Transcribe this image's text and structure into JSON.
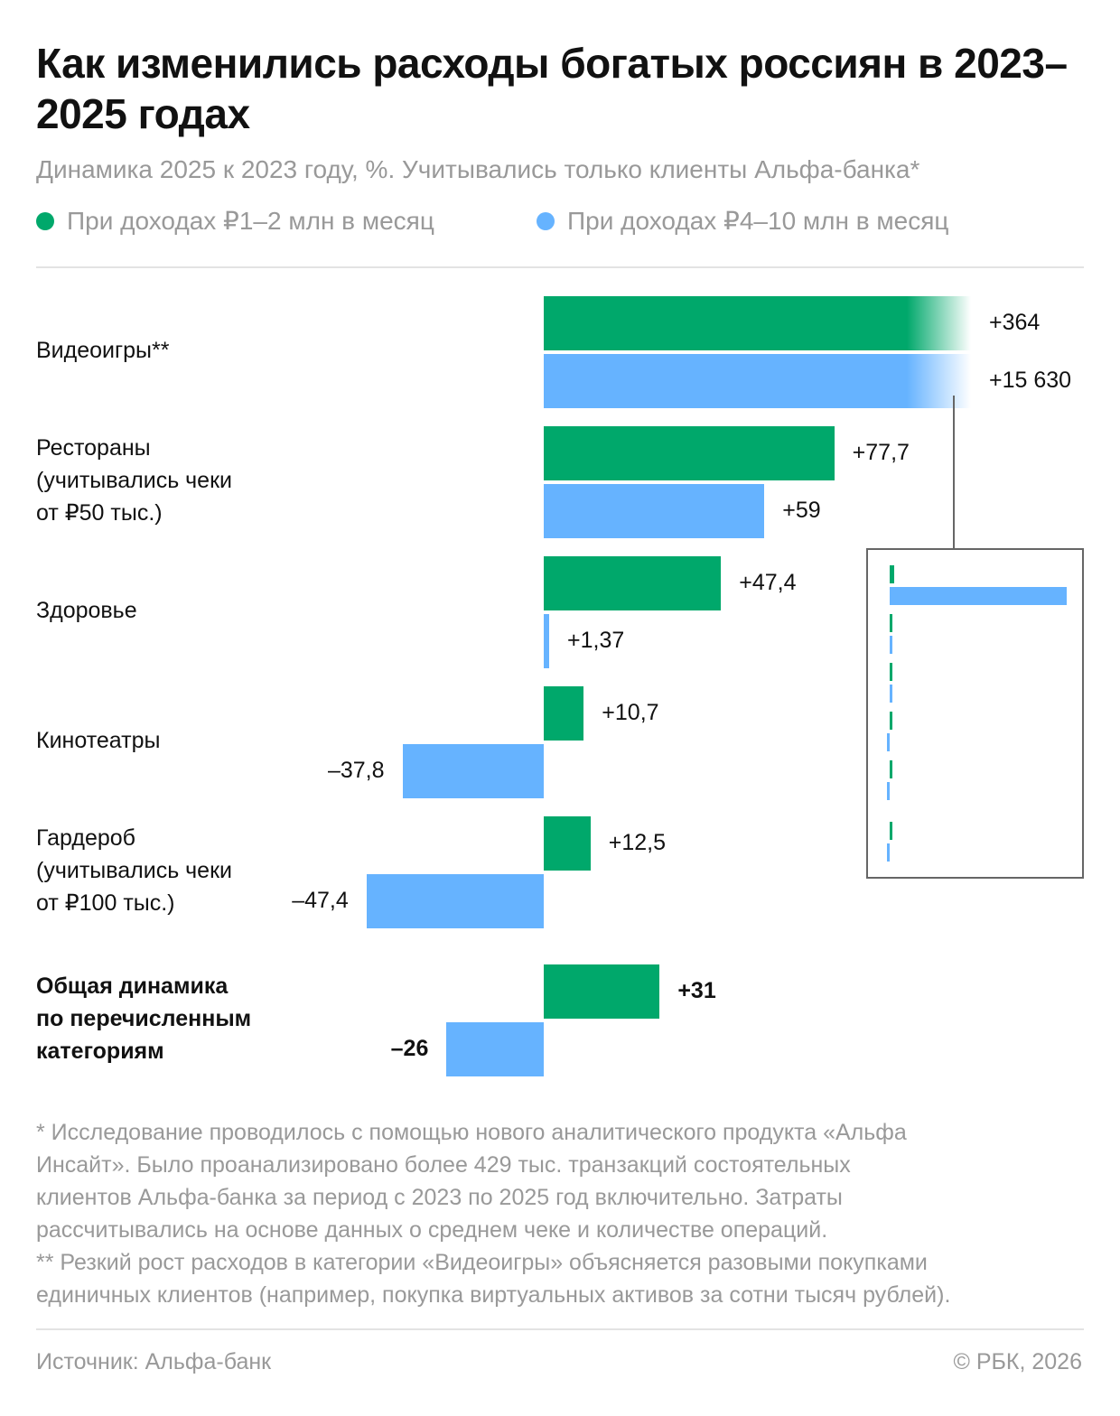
{
  "title": "Как изменились расходы богатых россиян в 2023–2025 годах",
  "subtitle": "Динамика 2025 к 2023 году, %. Учитывались только клиенты Альфа-банка*",
  "colors": {
    "green": "#00A86B",
    "blue": "#66B3FF"
  },
  "chart_data": {
    "type": "bar",
    "orientation": "horizontal",
    "title": "Как изменились расходы богатых россиян в 2023–2025 годах",
    "subtitle": "Динамика 2025 к 2023 году, %",
    "categories": [
      "Видеоигры**",
      "Рестораны (учитывались чеки от ₽50 тыс.)",
      "Здоровье",
      "Кинотеатры",
      "Гардероб (учитывались чеки от ₽100 тыс.)",
      "Общая динамика по перечисленным категориям"
    ],
    "category_lines": [
      [
        "Видеоигры**"
      ],
      [
        "Рестораны",
        "(учитывались чеки",
        "от ₽50 тыс.)"
      ],
      [
        "Здоровье"
      ],
      [
        "Кинотеатры"
      ],
      [
        "Гардероб",
        "(учитывались чеки",
        "от ₽100 тыс.)"
      ],
      [
        "Общая динамика",
        "по перечисленным",
        "категориям"
      ]
    ],
    "series": [
      {
        "name": "При доходах ₽1–2 млн в месяц",
        "values": [
          364,
          77.7,
          47.4,
          10.7,
          12.5,
          31
        ],
        "labels": [
          "+364",
          "+77,7",
          "+47,4",
          "+10,7",
          "+12,5",
          "+31"
        ]
      },
      {
        "name": "При доходах ₽4–10 млн в месяц",
        "values": [
          15630,
          59,
          1.37,
          -37.8,
          -47.4,
          -26
        ],
        "labels": [
          "+15 630",
          "+59",
          "+1,37",
          "–37,8",
          "–47,4",
          "–26"
        ]
      }
    ],
    "legend_position": "top-left",
    "grid": false,
    "note": "Bars for Видеоигры are truncated; inset shows full scale"
  },
  "footnote": "* Исследование проводилось с помощью нового аналитического продукта «Альфа Инсайт». Было проанализировано более 429 тыс. транзакций состоятельных клиентов Альфа-банка за период с 2023 по 2025 год включительно. Затраты рассчитывались на основе данных о среднем чеке и количестве операций. ** Резкий рост расходов в категории «Видеоигры» объясняется разовыми покупками единичных клиентов (например, покупка виртуальных активов за сотни тысяч рублей).",
  "footnote_lines": [
    "* Исследование проводилось с помощью нового аналитического продукта «Альфа",
    "Инсайт». Было проанализировано более 429 тыс. транзакций состоятельных",
    "клиентов Альфа-банка за период с 2023 по 2025 год включительно. Затраты",
    "рассчитывались на основе данных о среднем чеке и количестве операций.",
    "** Резкий рост расходов в категории «Видеоигры» объясняется разовыми покупками",
    "единичных клиентов (например, покупка виртуальных активов за сотни тысяч рублей)."
  ],
  "source": "Источник: Альфа-банк",
  "copyright": "© РБК, 2026"
}
